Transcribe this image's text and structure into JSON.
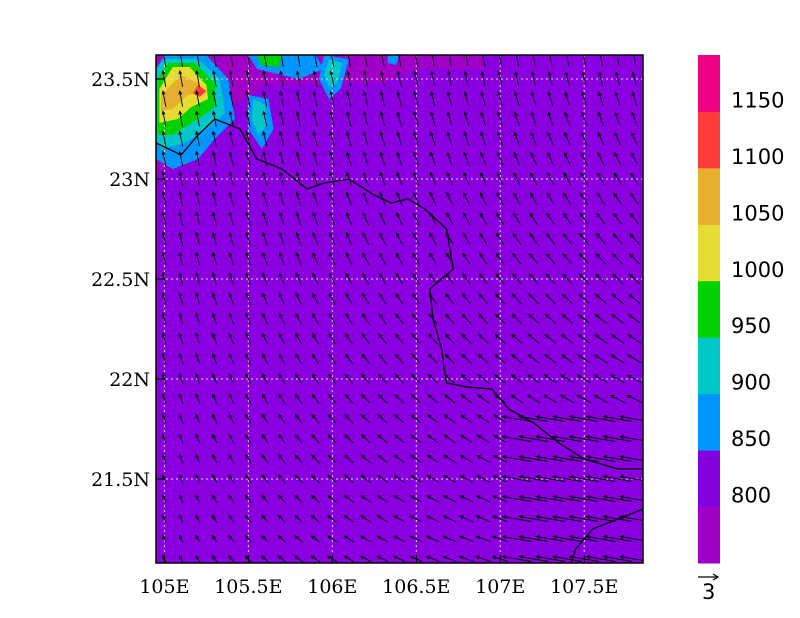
{
  "map": {
    "lon_range": [
      104.95,
      107.85
    ],
    "lat_range": [
      21.08,
      23.62
    ],
    "x_ticks": [
      {
        "value": 105.0,
        "label": "105E"
      },
      {
        "value": 105.5,
        "label": "105.5E"
      },
      {
        "value": 106.0,
        "label": "106E"
      },
      {
        "value": 106.5,
        "label": "106.5E"
      },
      {
        "value": 107.0,
        "label": "107E"
      },
      {
        "value": 107.5,
        "label": "107.5E"
      }
    ],
    "y_ticks": [
      {
        "value": 21.5,
        "label": "21.5N"
      },
      {
        "value": 22.0,
        "label": "22N"
      },
      {
        "value": 22.5,
        "label": "22.5N"
      },
      {
        "value": 23.0,
        "label": "23N"
      },
      {
        "value": 23.5,
        "label": "23.5N"
      }
    ],
    "grid": true,
    "background_level_color": "#8a00e0",
    "colorbar": {
      "labels": [
        "800",
        "850",
        "900",
        "950",
        "1000",
        "1050",
        "1100",
        "1150"
      ],
      "colors": [
        "#a000c8",
        "#8000e0",
        "#0096ff",
        "#00c8c8",
        "#00d200",
        "#e6dc32",
        "#e6af2d",
        "#ff3c3c",
        "#f00082"
      ]
    },
    "vector_reference": {
      "label": "3"
    },
    "contour_patches": [
      {
        "color": "#a000c8",
        "points": [
          [
            104.95,
            23.62
          ],
          [
            106.9,
            23.62
          ],
          [
            106.9,
            23.55
          ],
          [
            106.5,
            23.55
          ],
          [
            106.3,
            23.48
          ],
          [
            105.6,
            23.47
          ],
          [
            105.3,
            23.3
          ],
          [
            105.0,
            23.05
          ],
          [
            104.95,
            23.02
          ]
        ]
      },
      {
        "color": "#0096ff",
        "points": [
          [
            105.0,
            23.62
          ],
          [
            105.25,
            23.62
          ],
          [
            105.38,
            23.5
          ],
          [
            105.42,
            23.3
          ],
          [
            105.3,
            23.2
          ],
          [
            105.2,
            23.1
          ],
          [
            105.05,
            23.05
          ],
          [
            104.95,
            23.1
          ],
          [
            104.95,
            23.55
          ]
        ]
      },
      {
        "color": "#00c8c8",
        "points": [
          [
            105.0,
            23.6
          ],
          [
            105.2,
            23.6
          ],
          [
            105.33,
            23.5
          ],
          [
            105.36,
            23.33
          ],
          [
            105.25,
            23.25
          ],
          [
            105.12,
            23.18
          ],
          [
            104.98,
            23.15
          ],
          [
            104.95,
            23.2
          ],
          [
            104.95,
            23.55
          ]
        ]
      },
      {
        "color": "#00d200",
        "points": [
          [
            105.02,
            23.58
          ],
          [
            105.18,
            23.58
          ],
          [
            105.3,
            23.48
          ],
          [
            105.3,
            23.36
          ],
          [
            105.2,
            23.3
          ],
          [
            105.05,
            23.22
          ],
          [
            104.96,
            23.22
          ],
          [
            104.96,
            23.5
          ]
        ]
      },
      {
        "color": "#e6dc32",
        "points": [
          [
            105.05,
            23.56
          ],
          [
            105.15,
            23.56
          ],
          [
            105.25,
            23.47
          ],
          [
            105.26,
            23.4
          ],
          [
            105.16,
            23.36
          ],
          [
            105.08,
            23.3
          ],
          [
            104.97,
            23.28
          ],
          [
            104.97,
            23.45
          ]
        ]
      },
      {
        "color": "#e6af2d",
        "points": [
          [
            105.1,
            23.52
          ],
          [
            105.2,
            23.48
          ],
          [
            105.22,
            23.43
          ],
          [
            105.14,
            23.42
          ],
          [
            105.05,
            23.35
          ],
          [
            104.98,
            23.34
          ],
          [
            104.98,
            23.42
          ]
        ]
      },
      {
        "color": "#ff3c3c",
        "points": [
          [
            105.2,
            23.47
          ],
          [
            105.25,
            23.44
          ],
          [
            105.21,
            23.41
          ],
          [
            105.17,
            23.43
          ]
        ]
      },
      {
        "color": "#0096ff",
        "points": [
          [
            105.5,
            23.62
          ],
          [
            105.9,
            23.62
          ],
          [
            105.95,
            23.55
          ],
          [
            105.8,
            23.5
          ],
          [
            105.55,
            23.55
          ]
        ]
      },
      {
        "color": "#00d200",
        "points": [
          [
            105.55,
            23.62
          ],
          [
            105.7,
            23.62
          ],
          [
            105.68,
            23.56
          ],
          [
            105.58,
            23.57
          ]
        ]
      },
      {
        "color": "#0096ff",
        "points": [
          [
            105.95,
            23.62
          ],
          [
            106.1,
            23.6
          ],
          [
            106.05,
            23.45
          ],
          [
            105.98,
            23.4
          ],
          [
            105.92,
            23.5
          ]
        ]
      },
      {
        "color": "#00c8c8",
        "points": [
          [
            105.98,
            23.6
          ],
          [
            106.06,
            23.58
          ],
          [
            106.03,
            23.48
          ],
          [
            105.98,
            23.46
          ],
          [
            105.95,
            23.52
          ]
        ]
      },
      {
        "color": "#0096ff",
        "points": [
          [
            105.5,
            23.42
          ],
          [
            105.62,
            23.4
          ],
          [
            105.65,
            23.25
          ],
          [
            105.58,
            23.15
          ],
          [
            105.5,
            23.25
          ]
        ]
      },
      {
        "color": "#00c8c8",
        "points": [
          [
            105.53,
            23.4
          ],
          [
            105.6,
            23.37
          ],
          [
            105.61,
            23.27
          ],
          [
            105.56,
            23.22
          ],
          [
            105.52,
            23.3
          ]
        ]
      },
      {
        "color": "#0096ff",
        "points": [
          [
            106.33,
            23.62
          ],
          [
            106.4,
            23.62
          ],
          [
            106.38,
            23.57
          ],
          [
            106.33,
            23.58
          ]
        ]
      }
    ],
    "coastline": [
      [
        [
          104.95,
          23.18
        ],
        [
          105.1,
          23.12
        ],
        [
          105.2,
          23.22
        ],
        [
          105.3,
          23.3
        ],
        [
          105.45,
          23.25
        ],
        [
          105.55,
          23.1
        ],
        [
          105.7,
          23.05
        ],
        [
          105.85,
          22.95
        ],
        [
          105.95,
          22.98
        ],
        [
          106.1,
          23.0
        ],
        [
          106.25,
          22.92
        ],
        [
          106.35,
          22.88
        ],
        [
          106.45,
          22.9
        ],
        [
          106.55,
          22.85
        ],
        [
          106.68,
          22.75
        ],
        [
          106.72,
          22.55
        ],
        [
          106.58,
          22.45
        ],
        [
          106.6,
          22.3
        ],
        [
          106.65,
          22.15
        ],
        [
          106.68,
          21.98
        ],
        [
          106.8,
          21.96
        ],
        [
          106.95,
          21.95
        ],
        [
          107.05,
          21.85
        ],
        [
          107.2,
          21.78
        ],
        [
          107.35,
          21.68
        ],
        [
          107.5,
          21.6
        ],
        [
          107.7,
          21.55
        ],
        [
          107.85,
          21.55
        ]
      ],
      [
        [
          107.85,
          21.35
        ],
        [
          107.7,
          21.3
        ],
        [
          107.55,
          21.25
        ],
        [
          107.45,
          21.15
        ],
        [
          107.42,
          21.08
        ]
      ]
    ],
    "wind_grid": {
      "lon_start": 105.0,
      "lon_step": 0.1,
      "lat_start": 21.1,
      "lat_step": 0.1
    }
  }
}
